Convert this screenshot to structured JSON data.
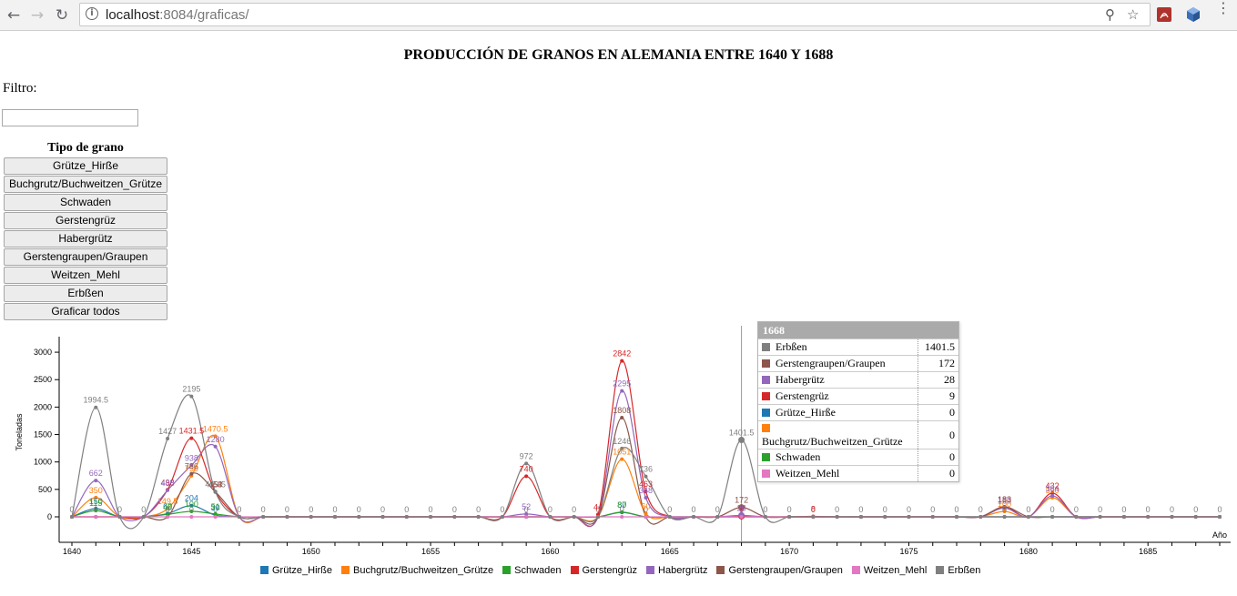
{
  "browser": {
    "url_host": "localhost",
    "url_rest": ":8084/graficas/"
  },
  "page": {
    "title": "PRODUCCIÓN DE GRANOS EN ALEMANIA ENTRE 1640 Y 1688",
    "filter_label": "Filtro:",
    "filter_value": "",
    "grain_type_heading": "Tipo de grano",
    "buttons": [
      "Grütze_Hirße",
      "Buchgrutz/Buchweitzen_Grütze",
      "Schwaden",
      "Gerstengrüz",
      "Habergrütz",
      "Gerstengraupen/Graupen",
      "Weitzen_Mehl",
      "Erbßen",
      "Graficar todos"
    ]
  },
  "tooltip": {
    "year": "1668",
    "rows": [
      {
        "name": "Erbßen",
        "value": "1401.5",
        "color": "#7f7f7f"
      },
      {
        "name": "Gerstengraupen/Graupen",
        "value": "172",
        "color": "#8c564b"
      },
      {
        "name": "Habergrütz",
        "value": "28",
        "color": "#9467bd"
      },
      {
        "name": "Gerstengrüz",
        "value": "9",
        "color": "#d62728"
      },
      {
        "name": "Grütze_Hirße",
        "value": "0",
        "color": "#1f77b4"
      },
      {
        "name": "Buchgrutz/Buchweitzen_Grütze",
        "value": "0",
        "color": "#ff7f0e"
      },
      {
        "name": "Schwaden",
        "value": "0",
        "color": "#2ca02c"
      },
      {
        "name": "Weitzen_Mehl",
        "value": "0",
        "color": "#e377c2"
      }
    ]
  },
  "chart_data": {
    "type": "line",
    "ylabel": "Toneladas",
    "xlabel": "Año",
    "ylim": [
      0,
      3250
    ],
    "y_ticks": [
      0,
      500,
      1000,
      1500,
      2000,
      2500,
      3000
    ],
    "x_ticks": [
      1640,
      1645,
      1650,
      1655,
      1660,
      1665,
      1670,
      1675,
      1680,
      1685
    ],
    "x": [
      1640,
      1641,
      1642,
      1643,
      1644,
      1645,
      1646,
      1647,
      1648,
      1649,
      1650,
      1651,
      1652,
      1653,
      1654,
      1655,
      1656,
      1657,
      1658,
      1659,
      1660,
      1661,
      1662,
      1663,
      1664,
      1665,
      1666,
      1667,
      1668,
      1669,
      1670,
      1671,
      1672,
      1673,
      1674,
      1675,
      1676,
      1677,
      1678,
      1679,
      1680,
      1681,
      1682,
      1683,
      1684,
      1685,
      1686,
      1687,
      1688
    ],
    "highlight_x": 1668,
    "series": [
      {
        "name": "Grütze_Hirße",
        "color": "#1f77b4",
        "values": [
          0,
          150,
          0,
          0,
          60,
          204,
          30,
          0,
          0,
          0,
          0,
          0,
          0,
          0,
          0,
          0,
          0,
          0,
          0,
          0,
          0,
          0,
          0,
          80,
          0,
          0,
          0,
          0,
          0,
          0,
          0,
          0,
          0,
          0,
          0,
          0,
          0,
          0,
          0,
          0,
          0,
          0,
          0,
          0,
          0,
          0,
          0,
          0,
          0
        ]
      },
      {
        "name": "Buchgrutz/Buchweitzen_Grütze",
        "color": "#ff7f0e",
        "values": [
          0,
          350,
          0,
          0,
          149.5,
          750,
          1470.5,
          0,
          0,
          0,
          0,
          0,
          0,
          0,
          0,
          0,
          0,
          0,
          0,
          0,
          0,
          0,
          0,
          1051,
          60,
          0,
          0,
          0,
          0,
          0,
          0,
          0,
          0,
          0,
          0,
          0,
          0,
          0,
          0,
          100,
          0,
          350,
          0,
          0,
          0,
          0,
          0,
          0,
          0
        ]
      },
      {
        "name": "Schwaden",
        "color": "#2ca02c",
        "values": [
          0,
          115,
          0,
          0,
          45,
          100,
          51,
          0,
          0,
          0,
          0,
          0,
          0,
          0,
          0,
          0,
          0,
          0,
          0,
          0,
          0,
          0,
          0,
          87,
          0,
          0,
          0,
          0,
          0,
          0,
          0,
          0,
          0,
          0,
          0,
          0,
          0,
          0,
          0,
          0,
          0,
          0,
          0,
          0,
          0,
          0,
          0,
          0,
          0
        ]
      },
      {
        "name": "Gerstengrüz",
        "color": "#d62728",
        "values": [
          0,
          0,
          0,
          0,
          493,
          1431.5,
          453,
          0,
          0,
          0,
          0,
          0,
          0,
          0,
          0,
          0,
          0,
          0,
          0,
          740,
          0,
          0,
          44,
          2842,
          463,
          0,
          0,
          0,
          9,
          0,
          0,
          8,
          0,
          0,
          0,
          0,
          0,
          0,
          0,
          183,
          0,
          432,
          0,
          0,
          0,
          0,
          0,
          0,
          0
        ]
      },
      {
        "name": "Habergrütz",
        "color": "#9467bd",
        "values": [
          0,
          662,
          0,
          0,
          485,
          938,
          1280,
          0,
          0,
          0,
          0,
          0,
          0,
          0,
          0,
          0,
          0,
          0,
          0,
          52,
          0,
          0,
          0,
          2295,
          348,
          0,
          0,
          0,
          28,
          0,
          0,
          0,
          0,
          0,
          0,
          0,
          0,
          0,
          0,
          160,
          0,
          384,
          0,
          0,
          0,
          0,
          0,
          0,
          0
        ]
      },
      {
        "name": "Gerstengraupen/Graupen",
        "color": "#8c564b",
        "values": [
          0,
          0,
          0,
          0,
          0,
          786,
          454,
          0,
          0,
          0,
          0,
          0,
          0,
          0,
          0,
          0,
          0,
          0,
          0,
          0,
          0,
          0,
          0,
          1808,
          0,
          0,
          0,
          0,
          172,
          0,
          0,
          0,
          0,
          0,
          0,
          0,
          0,
          0,
          0,
          183,
          0,
          0,
          0,
          0,
          0,
          0,
          0,
          0,
          0
        ]
      },
      {
        "name": "Weitzen_Mehl",
        "color": "#e377c2",
        "values": [
          0,
          0,
          0,
          0,
          0,
          0,
          0,
          0,
          0,
          0,
          0,
          0,
          0,
          0,
          0,
          0,
          0,
          0,
          0,
          0,
          0,
          0,
          0,
          0,
          0,
          0,
          0,
          0,
          0,
          0,
          0,
          0,
          0,
          0,
          0,
          0,
          0,
          0,
          0,
          0,
          0,
          0,
          0,
          0,
          0,
          0,
          0,
          0,
          0
        ]
      },
      {
        "name": "Erbßen",
        "color": "#7f7f7f",
        "values": [
          0,
          1994.5,
          0,
          0,
          1427,
          2195,
          459.5,
          0,
          0,
          0,
          0,
          0,
          0,
          0,
          0,
          0,
          0,
          0,
          0,
          972,
          0,
          0,
          0,
          1246,
          736,
          0,
          0,
          0,
          1401.5,
          0,
          0,
          0,
          0,
          0,
          0,
          0,
          0,
          0,
          0,
          0,
          0,
          0,
          0,
          0,
          0,
          0,
          0,
          0,
          0
        ]
      }
    ]
  }
}
